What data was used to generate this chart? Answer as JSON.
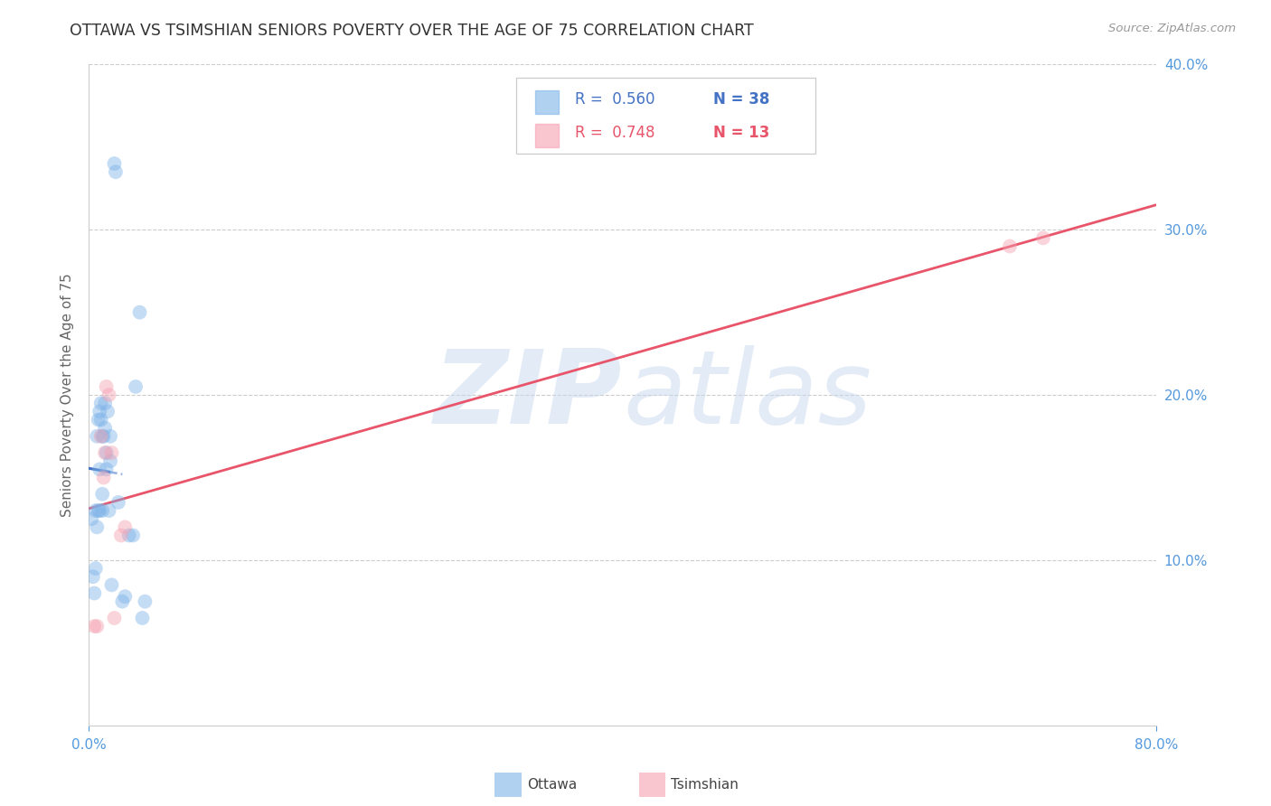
{
  "title": "OTTAWA VS TSIMSHIAN SENIORS POVERTY OVER THE AGE OF 75 CORRELATION CHART",
  "source": "Source: ZipAtlas.com",
  "ylabel": "Seniors Poverty Over the Age of 75",
  "watermark": "ZIPatlas",
  "xlim": [
    0.0,
    0.8
  ],
  "ylim": [
    0.0,
    0.4
  ],
  "xticks": [
    0.0,
    0.8
  ],
  "xtick_labels": [
    "0.0%",
    "80.0%"
  ],
  "yticks": [
    0.0,
    0.1,
    0.2,
    0.3,
    0.4
  ],
  "ytick_labels": [
    "",
    "10.0%",
    "20.0%",
    "30.0%",
    "40.0%"
  ],
  "ottawa_color": "#7EB3E8",
  "tsimshian_color": "#F5A0B0",
  "trendline_ottawa_color": "#4472C4",
  "trendline_tsimshian_color": "#E8556A",
  "legend_r_ottawa": "0.560",
  "legend_n_ottawa": "38",
  "legend_r_tsimshian": "0.748",
  "legend_n_tsimshian": "13",
  "ottawa_x": [
    0.002,
    0.003,
    0.004,
    0.005,
    0.005,
    0.006,
    0.006,
    0.007,
    0.007,
    0.008,
    0.008,
    0.008,
    0.009,
    0.009,
    0.01,
    0.01,
    0.01,
    0.011,
    0.012,
    0.012,
    0.013,
    0.013,
    0.014,
    0.015,
    0.016,
    0.016,
    0.017,
    0.019,
    0.02,
    0.022,
    0.025,
    0.027,
    0.03,
    0.033,
    0.035,
    0.038,
    0.04,
    0.042
  ],
  "ottawa_y": [
    0.125,
    0.09,
    0.08,
    0.13,
    0.095,
    0.12,
    0.175,
    0.13,
    0.185,
    0.155,
    0.13,
    0.19,
    0.185,
    0.195,
    0.14,
    0.175,
    0.13,
    0.175,
    0.195,
    0.18,
    0.165,
    0.155,
    0.19,
    0.13,
    0.175,
    0.16,
    0.085,
    0.34,
    0.335,
    0.135,
    0.075,
    0.078,
    0.115,
    0.115,
    0.205,
    0.25,
    0.065,
    0.075
  ],
  "tsimshian_x": [
    0.004,
    0.006,
    0.009,
    0.011,
    0.012,
    0.013,
    0.015,
    0.017,
    0.019,
    0.024,
    0.027,
    0.69,
    0.715
  ],
  "tsimshian_y": [
    0.06,
    0.06,
    0.175,
    0.15,
    0.165,
    0.205,
    0.2,
    0.165,
    0.065,
    0.115,
    0.12,
    0.29,
    0.295
  ],
  "background_color": "#FFFFFF",
  "grid_color": "#CCCCCC",
  "axis_color": "#CCCCCC",
  "tick_color": "#5599DD",
  "title_color": "#333333",
  "title_fontsize": 12.5,
  "source_fontsize": 9.5,
  "ylabel_fontsize": 11,
  "tick_fontsize": 11,
  "marker_size": 130,
  "marker_alpha": 0.45
}
